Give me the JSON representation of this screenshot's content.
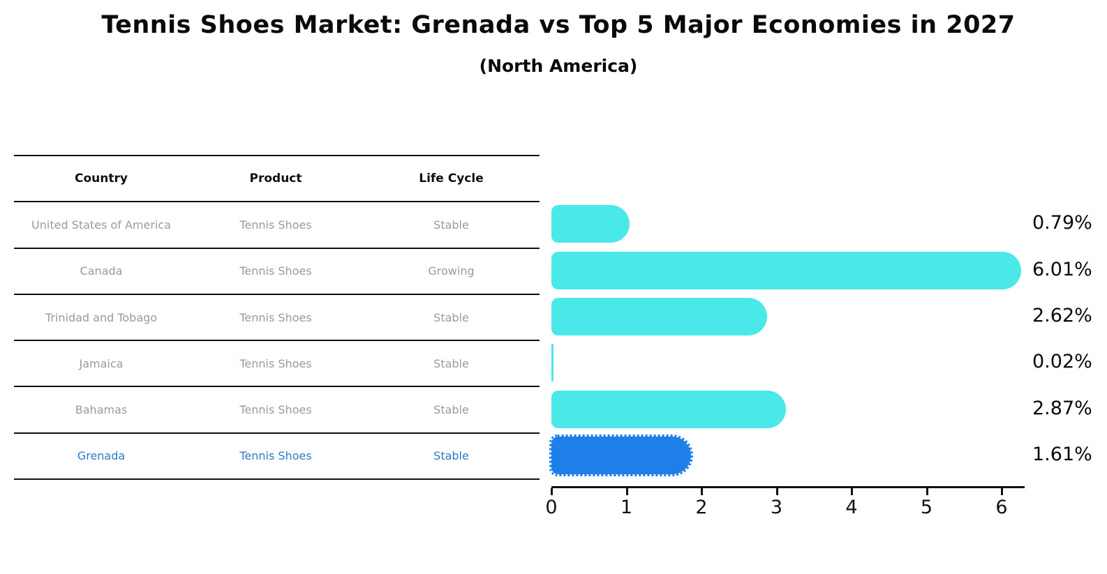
{
  "title": "Tennis Shoes Market: Grenada vs Top 5 Major Economies in 2027",
  "subtitle": "(North America)",
  "table": {
    "headers": [
      "Country",
      "Product",
      "Life Cycle"
    ],
    "rows": [
      {
        "country": "United States of America",
        "product": "Tennis Shoes",
        "life_cycle": "Stable",
        "value_label": "0.79%",
        "highlighted": false
      },
      {
        "country": "Canada",
        "product": "Tennis Shoes",
        "life_cycle": "Growing",
        "value_label": "6.01%",
        "highlighted": false
      },
      {
        "country": "Trinidad and Tobago",
        "product": "Tennis Shoes",
        "life_cycle": "Stable",
        "value_label": "2.62%",
        "highlighted": false
      },
      {
        "country": "Jamaica",
        "product": "Tennis Shoes",
        "life_cycle": "Stable",
        "value_label": "0.02%",
        "highlighted": false
      },
      {
        "country": "Bahamas",
        "product": "Tennis Shoes",
        "life_cycle": "Stable",
        "value_label": "2.87%",
        "highlighted": false
      },
      {
        "country": "Grenada",
        "product": "Tennis Shoes",
        "life_cycle": "Stable",
        "value_label": "1.61%",
        "highlighted": true
      }
    ]
  },
  "chart_data": {
    "type": "bar",
    "orientation": "horizontal",
    "title": "Tennis Shoes Market: Grenada vs Top 5 Major Economies in 2027 (North America)",
    "categories": [
      "United States of America",
      "Canada",
      "Trinidad and Tobago",
      "Jamaica",
      "Bahamas",
      "Grenada"
    ],
    "values": [
      0.79,
      6.01,
      2.62,
      0.02,
      2.87,
      1.61
    ],
    "value_labels": [
      "0.79%",
      "6.01%",
      "2.62%",
      "0.02%",
      "2.87%",
      "1.61%"
    ],
    "xlabel": "",
    "ylabel": "",
    "xlim": [
      0,
      6.3
    ],
    "x_ticks": [
      0,
      1,
      2,
      3,
      4,
      5,
      6
    ],
    "grid": false,
    "legend": "none",
    "highlight_category": "Grenada"
  },
  "colors": {
    "bar_default": "#4ae8e8",
    "bar_highlight": "#1e7fe8",
    "highlight_text": "#2979c9",
    "row_text": "#9a9a9a",
    "heading_text": "#111111",
    "axis": "#111111",
    "background": "#ffffff"
  }
}
